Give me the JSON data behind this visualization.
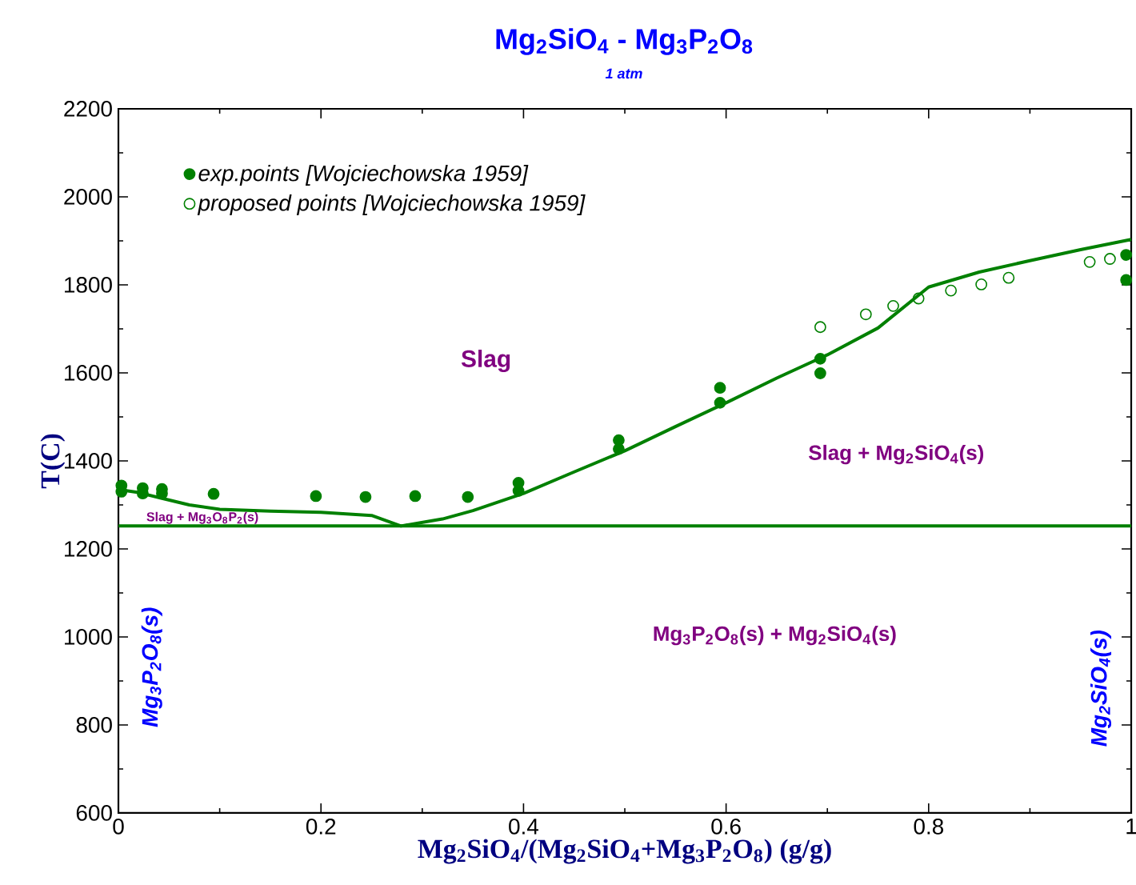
{
  "chart_data": {
    "type": "line",
    "title": "Mg$_{2}$SiO$_{4}$ - Mg$_{3}$P$_{2}$O$_{8}$",
    "subtitle": "1 atm",
    "xlabel": "Mg$_{2}$SiO$_{4}$/(Mg$_{2}$SiO$_{4}$+Mg$_{3}$P$_{2}$O$_{8}$) (g/g)",
    "ylabel": "T(C)",
    "xlim": [
      0,
      1
    ],
    "ylim": [
      600,
      2200
    ],
    "xticks": [
      0,
      0.2,
      0.4,
      0.6,
      0.8,
      1
    ],
    "yticks": [
      600,
      800,
      1000,
      1200,
      1400,
      1600,
      1800,
      2000,
      2200
    ],
    "grid": false,
    "legend": "top left",
    "ref_lines": [
      {
        "axis": "y",
        "value": 1252,
        "color": "#008000"
      }
    ],
    "annotations": [
      "Slag",
      "Slag + Mg$_{2}$SiO$_{4}$(s)",
      "Slag + Mg$_{3}$O$_{8}$P$_{2}$(s)",
      "Mg$_{3}$P$_{2}$O$_{8}$(s) + Mg$_{2}$SiO$_{4}$(s)",
      "Mg$_{3}$P$_{2}$O$_{8}$(s)",
      "Mg$_{2}$SiO$_{4}$(s)"
    ],
    "series": [
      {
        "marker": "none",
        "color": "#008000",
        "x": [
          0,
          0.02,
          0.043,
          0.07,
          0.1,
          0.15,
          0.2,
          0.25,
          0.279,
          0.32,
          0.35,
          0.4,
          0.45,
          0.5,
          0.55,
          0.6,
          0.65,
          0.7,
          0.75,
          0.8,
          0.85,
          0.9,
          0.95,
          1
        ],
        "values": [
          1335,
          1328,
          1315,
          1300,
          1290,
          1286,
          1283,
          1276,
          1252,
          1268,
          1287,
          1326,
          1375,
          1423,
          1478,
          1532,
          1588,
          1641,
          1702,
          1795,
          1829,
          1855,
          1880,
          1903
        ]
      },
      {
        "name": "exp.points [Wojciechowska 1959]",
        "type": "scatter",
        "marker": "circle",
        "color": "#008000",
        "x": [
          0.003,
          0.003,
          0.024,
          0.024,
          0.043,
          0.043,
          0.094,
          0.195,
          0.244,
          0.293,
          0.345,
          0.395,
          0.395,
          0.494,
          0.494,
          0.594,
          0.594,
          0.693,
          0.693,
          0.995,
          0.995
        ],
        "values": [
          1344,
          1330,
          1338,
          1326,
          1336,
          1326,
          1325,
          1320,
          1318,
          1320,
          1318,
          1350,
          1332,
          1447,
          1427,
          1566,
          1532,
          1632,
          1599,
          1868,
          1811
        ]
      },
      {
        "name": "proposed points [Wojciechowska 1959]",
        "type": "scatter",
        "marker": "circle open",
        "color": "#008000",
        "x": [
          0.693,
          0.738,
          0.765,
          0.79,
          0.822,
          0.852,
          0.879,
          0.959,
          0.979
        ],
        "values": [
          1704,
          1733,
          1752,
          1769,
          1787,
          1801,
          1816,
          1852,
          1859
        ]
      }
    ]
  }
}
